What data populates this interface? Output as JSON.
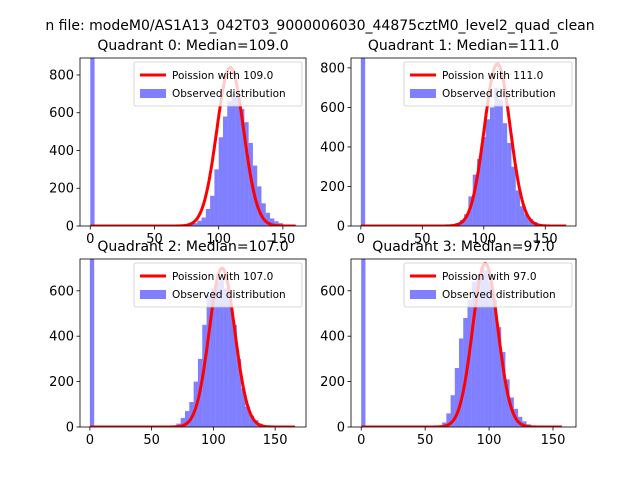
{
  "figure": {
    "suptitle": "n file: modeM0/AS1A13_042T03_9000006030_44875cztM0_level2_quad_clean"
  },
  "colors": {
    "fit": "#ff0000",
    "hist": "#0000ff",
    "hist_alpha": 0.5,
    "axes": "#000000",
    "background": "#ffffff"
  },
  "chart_data": [
    {
      "type": "bar",
      "title": "Quadrant 0: Median=109.0",
      "xlabel": "",
      "ylabel": "",
      "xlim": [
        -8,
        168
      ],
      "ylim": [
        0,
        890
      ],
      "xticks": [
        0,
        50,
        100,
        150
      ],
      "yticks": [
        0,
        200,
        400,
        600,
        800
      ],
      "legend": {
        "placement": "upper right",
        "entries": [
          "Poission with 109.0",
          "Observed distribution"
        ]
      },
      "grid": false,
      "fit": {
        "name": "Poission with 109.0",
        "mean": 109.0,
        "peak": 840,
        "range": [
          0,
          160
        ]
      },
      "series": [
        {
          "name": "Observed distribution",
          "bin_edges": [
            0,
            3.33,
            70,
            73.33,
            76.67,
            80,
            83.33,
            86.67,
            90,
            93.33,
            96.67,
            100,
            103.33,
            106.67,
            110,
            113.33,
            116.67,
            120,
            123.33,
            126.67,
            130,
            133.33,
            136.67,
            140,
            143.33,
            146.67,
            150,
            153.33,
            156.67,
            160
          ],
          "values": [
            890,
            0,
            2,
            5,
            8,
            15,
            28,
            45,
            90,
            160,
            300,
            470,
            580,
            660,
            700,
            690,
            620,
            550,
            440,
            320,
            210,
            120,
            70,
            40,
            25,
            15,
            8,
            5,
            2
          ]
        }
      ]
    },
    {
      "type": "bar",
      "title": "Quadrant 1: Median=111.0",
      "xlabel": "",
      "ylabel": "",
      "xlim": [
        -8,
        175
      ],
      "ylim": [
        0,
        850
      ],
      "xticks": [
        0,
        50,
        100,
        150
      ],
      "yticks": [
        0,
        200,
        400,
        600,
        800
      ],
      "legend": {
        "placement": "upper right",
        "entries": [
          "Poission with 111.0",
          "Observed distribution"
        ]
      },
      "grid": false,
      "fit": {
        "name": "Poission with 111.0",
        "mean": 111.0,
        "peak": 820,
        "range": [
          0,
          167
        ]
      },
      "series": [
        {
          "name": "Observed distribution",
          "bin_edges": [
            0,
            3.5,
            70,
            73.5,
            77,
            80.5,
            84,
            87.5,
            91,
            94.5,
            98,
            101.5,
            105,
            108.5,
            112,
            115.5,
            119,
            122.5,
            126,
            129.5,
            133,
            136.5,
            140,
            143.5,
            147,
            150.5
          ],
          "values": [
            850,
            0,
            3,
            8,
            15,
            30,
            60,
            150,
            260,
            340,
            450,
            540,
            600,
            700,
            640,
            520,
            420,
            300,
            180,
            100,
            60,
            35,
            20,
            10,
            5
          ]
        }
      ]
    },
    {
      "type": "bar",
      "title": "Quadrant 2: Median=107.0",
      "xlabel": "",
      "ylabel": "",
      "xlim": [
        -8,
        175
      ],
      "ylim": [
        0,
        740
      ],
      "xticks": [
        0,
        50,
        100,
        150
      ],
      "yticks": [
        0,
        200,
        400,
        600
      ],
      "legend": {
        "placement": "upper right",
        "entries": [
          "Poission with 107.0",
          "Observed distribution"
        ]
      },
      "grid": false,
      "fit": {
        "name": "Poission with 107.0",
        "mean": 107.0,
        "peak": 700,
        "range": [
          0,
          166
        ]
      },
      "series": [
        {
          "name": "Observed distribution",
          "bin_edges": [
            0,
            3.5,
            70,
            73.5,
            77,
            80.5,
            84,
            87.5,
            91,
            94.5,
            98,
            101.5,
            105,
            108.5,
            112,
            115.5,
            119,
            122.5,
            126,
            129.5,
            133,
            136.5,
            140,
            143.5,
            147,
            150.5
          ],
          "values": [
            740,
            0,
            15,
            40,
            70,
            110,
            200,
            300,
            450,
            580,
            610,
            640,
            650,
            610,
            560,
            450,
            300,
            170,
            90,
            50,
            30,
            15,
            8,
            4,
            2
          ]
        }
      ]
    },
    {
      "type": "bar",
      "title": "Quadrant 3: Median=97.0",
      "xlabel": "",
      "ylabel": "",
      "xlim": [
        -8,
        168
      ],
      "ylim": [
        0,
        740
      ],
      "xticks": [
        0,
        50,
        100,
        150
      ],
      "yticks": [
        0,
        200,
        400,
        600
      ],
      "legend": {
        "placement": "upper right",
        "entries": [
          "Poission with 97.0",
          "Observed distribution"
        ]
      },
      "grid": false,
      "fit": {
        "name": "Poission with 97.0",
        "mean": 97.0,
        "peak": 720,
        "range": [
          0,
          157
        ]
      },
      "series": [
        {
          "name": "Observed distribution",
          "bin_edges": [
            0,
            3.3,
            60,
            63.3,
            66.6,
            69.9,
            73.2,
            76.5,
            79.8,
            83.1,
            86.4,
            89.7,
            93,
            96.3,
            99.6,
            102.9,
            106.2,
            109.5,
            112.8,
            116.1,
            119.4,
            122.7,
            126,
            129.3,
            132.6,
            135.9
          ],
          "values": [
            740,
            0,
            5,
            20,
            60,
            140,
            260,
            390,
            480,
            560,
            640,
            670,
            700,
            690,
            640,
            560,
            440,
            330,
            210,
            130,
            80,
            45,
            25,
            12,
            6
          ]
        }
      ]
    }
  ]
}
